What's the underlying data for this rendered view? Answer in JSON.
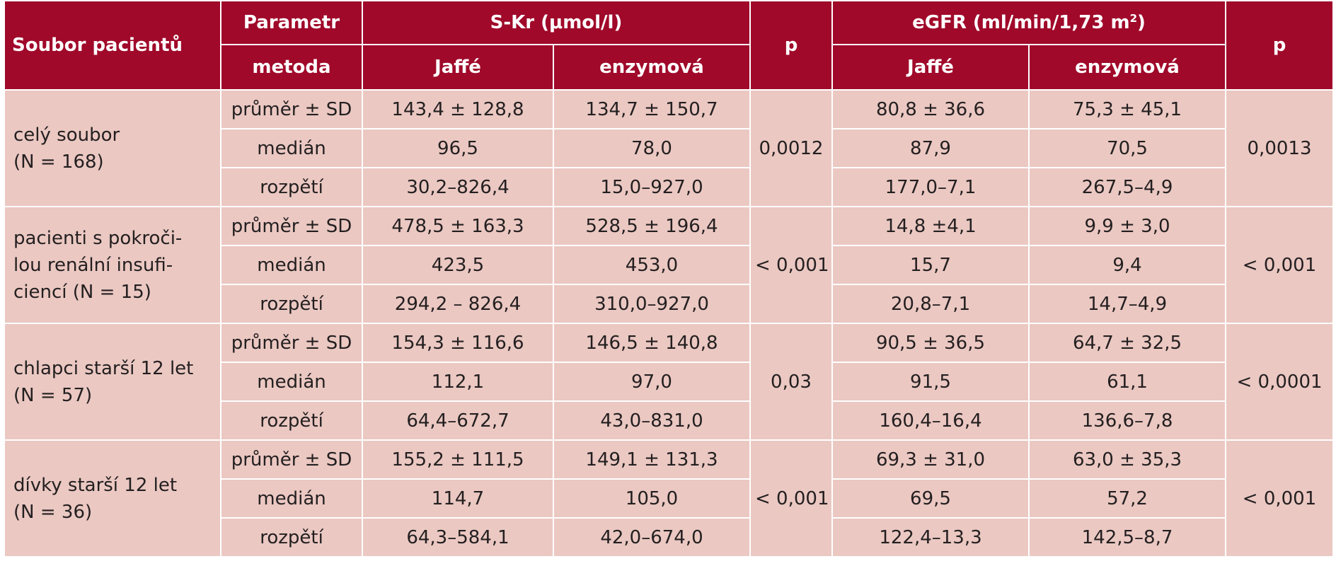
{
  "header": {
    "patient_set": "Soubor pacientů",
    "parameter": "Parametr",
    "method": "metoda",
    "skr": "S-Kr (μmol/l)",
    "egfr": "eGFR (ml/min/1,73 m",
    "egfr_sup": "2",
    "egfr_end": ")",
    "p": "p",
    "jaffe": "Jaffé",
    "enzymatic": "enzymová"
  },
  "groups": [
    {
      "name": [
        "celý soubor",
        "(N = 168)"
      ],
      "p_skr": "0,0012",
      "p_egfr": "0,0013",
      "rows": [
        {
          "param": "průměr ± SD",
          "skr_jaffe": "143,4 ± 128,8",
          "skr_enz": "134,7 ± 150,7",
          "egfr_jaffe": "80,8 ± 36,6",
          "egfr_enz": "75,3 ± 45,1"
        },
        {
          "param": "medián",
          "skr_jaffe": "96,5",
          "skr_enz": "78,0",
          "egfr_jaffe": "87,9",
          "egfr_enz": "70,5"
        },
        {
          "param": "rozpětí",
          "skr_jaffe": "30,2–826,4",
          "skr_enz": "15,0–927,0",
          "egfr_jaffe": "177,0–7,1",
          "egfr_enz": "267,5–4,9"
        }
      ]
    },
    {
      "name": [
        "pacienti s pokroči-",
        "lou renální insufi-",
        "ciencí (N = 15)"
      ],
      "p_skr": "< 0,001",
      "p_egfr": "< 0,001",
      "rows": [
        {
          "param": "průměr ± SD",
          "skr_jaffe": "478,5 ± 163,3",
          "skr_enz": "528,5 ± 196,4",
          "egfr_jaffe": "14,8 ±4,1",
          "egfr_enz": "9,9 ± 3,0"
        },
        {
          "param": "medián",
          "skr_jaffe": "423,5",
          "skr_enz": "453,0",
          "egfr_jaffe": "15,7",
          "egfr_enz": "9,4"
        },
        {
          "param": "rozpětí",
          "skr_jaffe": "294,2 – 826,4",
          "skr_enz": "310,0–927,0",
          "egfr_jaffe": "20,8–7,1",
          "egfr_enz": "14,7–4,9"
        }
      ]
    },
    {
      "name": [
        "chlapci starší 12 let",
        "(N = 57)"
      ],
      "p_skr": "0,03",
      "p_egfr": "< 0,0001",
      "rows": [
        {
          "param": "průměr ± SD",
          "skr_jaffe": "154,3 ± 116,6",
          "skr_enz": "146,5 ± 140,8",
          "egfr_jaffe": "90,5 ± 36,5",
          "egfr_enz": "64,7 ± 32,5"
        },
        {
          "param": "medián",
          "skr_jaffe": "112,1",
          "skr_enz": "97,0",
          "egfr_jaffe": "91,5",
          "egfr_enz": "61,1"
        },
        {
          "param": "rozpětí",
          "skr_jaffe": "64,4–672,7",
          "skr_enz": "43,0–831,0",
          "egfr_jaffe": "160,4–16,4",
          "egfr_enz": "136,6–7,8"
        }
      ]
    },
    {
      "name": [
        "dívky starší 12 let",
        "(N = 36)"
      ],
      "p_skr": "< 0,001",
      "p_egfr": "< 0,001",
      "rows": [
        {
          "param": "průměr ± SD",
          "skr_jaffe": "155,2 ± 111,5",
          "skr_enz": "149,1 ± 131,3",
          "egfr_jaffe": "69,3 ± 31,0",
          "egfr_enz": "63,0 ± 35,3"
        },
        {
          "param": "medián",
          "skr_jaffe": "114,7",
          "skr_enz": "105,0",
          "egfr_jaffe": "69,5",
          "egfr_enz": "57,2"
        },
        {
          "param": "rozpětí",
          "skr_jaffe": "64,3–584,1",
          "skr_enz": "42,0–674,0",
          "egfr_jaffe": "122,4–13,3",
          "egfr_enz": "142,5–8,7"
        }
      ]
    }
  ]
}
